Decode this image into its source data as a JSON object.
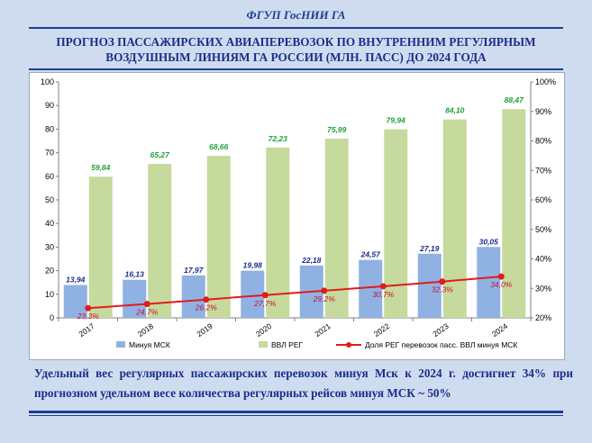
{
  "header": {
    "org": "ФГУП ГосНИИ ГА"
  },
  "title": {
    "line1": "ПРОГНОЗ ПАССАЖИРСКИХ АВИАПЕРЕВОЗОК ПО ВНУТРЕННИМ РЕГУЛЯРНЫМ",
    "line2": "ВОЗДУШНЫМ ЛИНИЯМ ГА РОССИИ (МЛН. ПАСС) ДО 2024 ГОДА"
  },
  "caption": "Удельный вес регулярных пассажирских перевозок минуя Мск к 2024 г. достигнет 34% при прогнозном удельном весе количества регулярных рейсов минуя МСК ~ 50%",
  "colors": {
    "bar_msk": "#8fb2e3",
    "bar_reg": "#c6da9e",
    "line": "#e31b1b",
    "label_msk": "#1c2d8c",
    "label_reg": "#22a039",
    "label_share": "#c8102e"
  },
  "chart_data": {
    "type": "bar",
    "categories": [
      "2017",
      "2018",
      "2019",
      "2020",
      "2021",
      "2022",
      "2023",
      "2024"
    ],
    "series": [
      {
        "name": "Минуя МСК",
        "type": "bar",
        "values": [
          13.94,
          16.13,
          17.97,
          19.98,
          22.18,
          24.57,
          27.19,
          30.05
        ],
        "labels": [
          "13,94",
          "16,13",
          "17,97",
          "19,98",
          "22,18",
          "24,57",
          "27,19",
          "30,05"
        ]
      },
      {
        "name": "ВВЛ РЕГ",
        "type": "bar",
        "values": [
          59.84,
          65.27,
          68.66,
          72.23,
          75.99,
          79.94,
          84.1,
          88.47
        ],
        "labels": [
          "59,84",
          "65,27",
          "68,66",
          "72,23",
          "75,99",
          "79,94",
          "84,10",
          "88,47"
        ]
      },
      {
        "name": "Доля РЕГ перевозок пасс. ВВЛ минуя МСК",
        "type": "line",
        "axis": "right",
        "values": [
          23.3,
          24.7,
          26.2,
          27.7,
          29.2,
          30.7,
          32.3,
          34.0
        ],
        "labels": [
          "23,3%",
          "24,7%",
          "26,2%",
          "27,7%",
          "29,2%",
          "30,7%",
          "32,3%",
          "34,0%"
        ]
      }
    ],
    "ylim": [
      0,
      100
    ],
    "yticks": [
      "0",
      "10",
      "20",
      "30",
      "40",
      "50",
      "60",
      "70",
      "80",
      "90",
      "100"
    ],
    "y2lim": [
      20,
      100
    ],
    "y2ticks": [
      "20%",
      "30%",
      "40%",
      "50%",
      "60%",
      "70%",
      "80%",
      "90%",
      "100%"
    ],
    "grid": false,
    "legend": "bottom"
  }
}
